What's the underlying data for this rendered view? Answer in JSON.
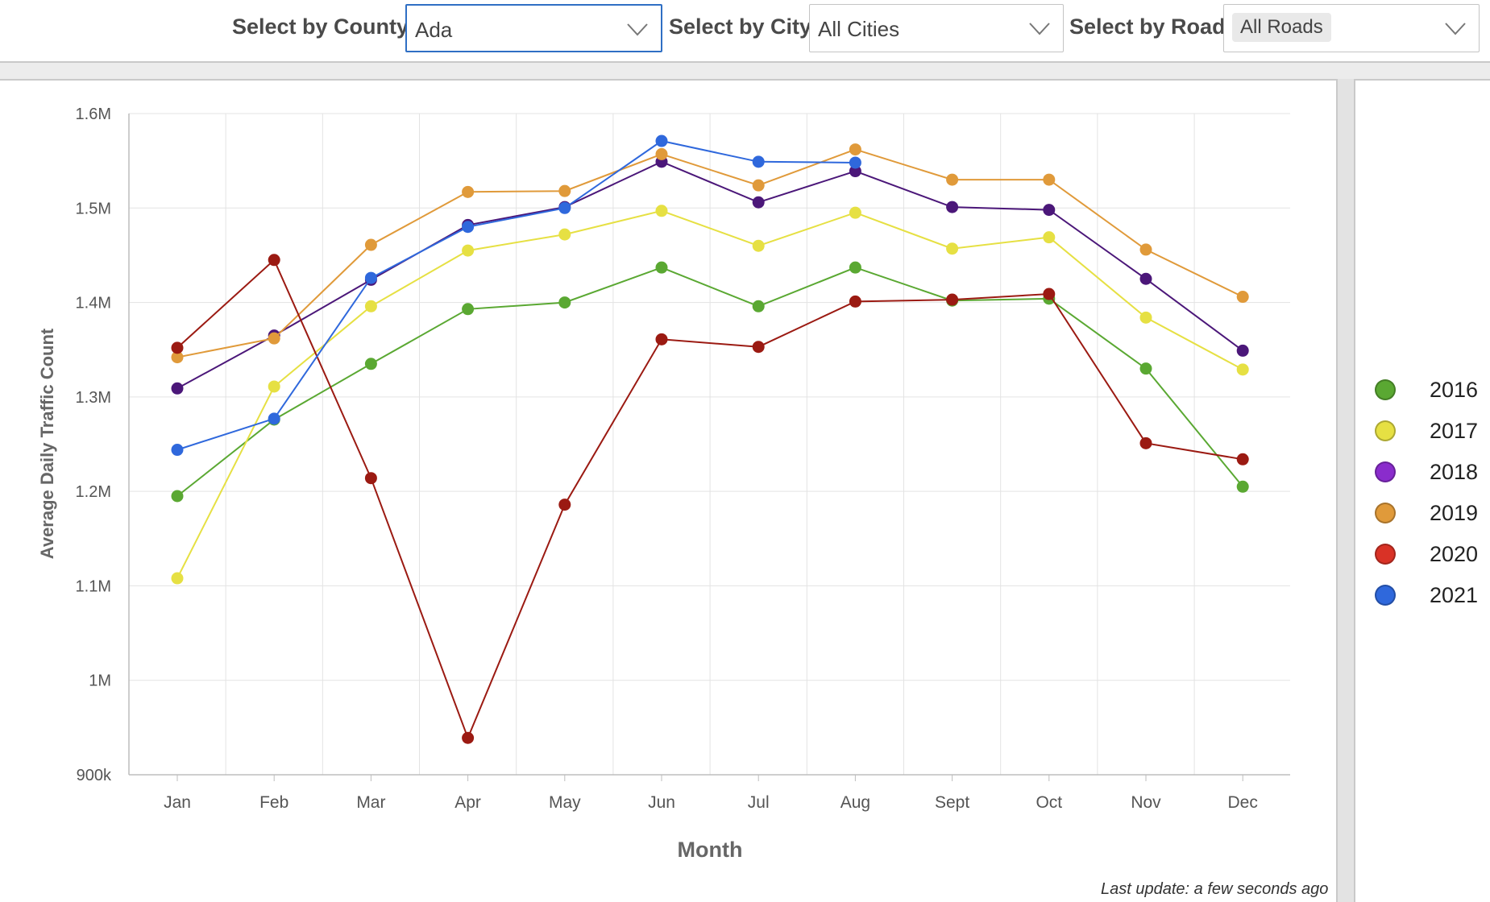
{
  "filters": {
    "county": {
      "label": "Select by County",
      "value": "Ada"
    },
    "city": {
      "label": "Select by City",
      "value": "All Cities"
    },
    "road": {
      "label": "Select by Road",
      "value": "All Roads"
    }
  },
  "footer": {
    "last_update": "Last update: a few seconds ago"
  },
  "chart_data": {
    "type": "line",
    "xlabel": "Month",
    "ylabel": "Average Daily Traffic Count",
    "ylim": [
      900000,
      1600000
    ],
    "y_ticks": [
      {
        "value": 900000,
        "label": "900k"
      },
      {
        "value": 1000000,
        "label": "1M"
      },
      {
        "value": 1100000,
        "label": "1.1M"
      },
      {
        "value": 1200000,
        "label": "1.2M"
      },
      {
        "value": 1300000,
        "label": "1.3M"
      },
      {
        "value": 1400000,
        "label": "1.4M"
      },
      {
        "value": 1500000,
        "label": "1.5M"
      },
      {
        "value": 1600000,
        "label": "1.6M"
      }
    ],
    "categories": [
      "Jan",
      "Feb",
      "Mar",
      "Apr",
      "May",
      "Jun",
      "Jul",
      "Aug",
      "Sept",
      "Oct",
      "Nov",
      "Dec"
    ],
    "grid": true,
    "legend_position": "right",
    "series": [
      {
        "name": "2016",
        "color": "#5aa832",
        "legend_color": "#5aa832",
        "values": [
          1195000,
          1276000,
          1335000,
          1393000,
          1400000,
          1437000,
          1396000,
          1437000,
          1402000,
          1404000,
          1330000,
          1205000
        ]
      },
      {
        "name": "2017",
        "color": "#e6e043",
        "legend_color": "#e6e043",
        "values": [
          1108000,
          1311000,
          1396000,
          1455000,
          1472000,
          1497000,
          1460000,
          1495000,
          1457000,
          1469000,
          1384000,
          1329000
        ]
      },
      {
        "name": "2018",
        "color": "#4b1779",
        "legend_color": "#8a2ccc",
        "values": [
          1309000,
          1365000,
          1424000,
          1482000,
          1501000,
          1549000,
          1506000,
          1539000,
          1501000,
          1498000,
          1425000,
          1349000
        ]
      },
      {
        "name": "2019",
        "color": "#e09a3a",
        "legend_color": "#e09a3a",
        "values": [
          1342000,
          1362000,
          1461000,
          1517000,
          1518000,
          1557000,
          1524000,
          1562000,
          1530000,
          1530000,
          1456000,
          1406000
        ]
      },
      {
        "name": "2020",
        "color": "#9b1a12",
        "legend_color": "#d93226",
        "values": [
          1352000,
          1445000,
          1214000,
          939000,
          1186000,
          1361000,
          1353000,
          1401000,
          1403000,
          1409000,
          1251000,
          1234000
        ]
      },
      {
        "name": "2021",
        "color": "#2f68dc",
        "legend_color": "#2f68dc",
        "values": [
          1244000,
          1277000,
          1426000,
          1480000,
          1500000,
          1571000,
          1549000,
          1548000,
          null,
          null,
          null,
          null
        ]
      }
    ]
  }
}
